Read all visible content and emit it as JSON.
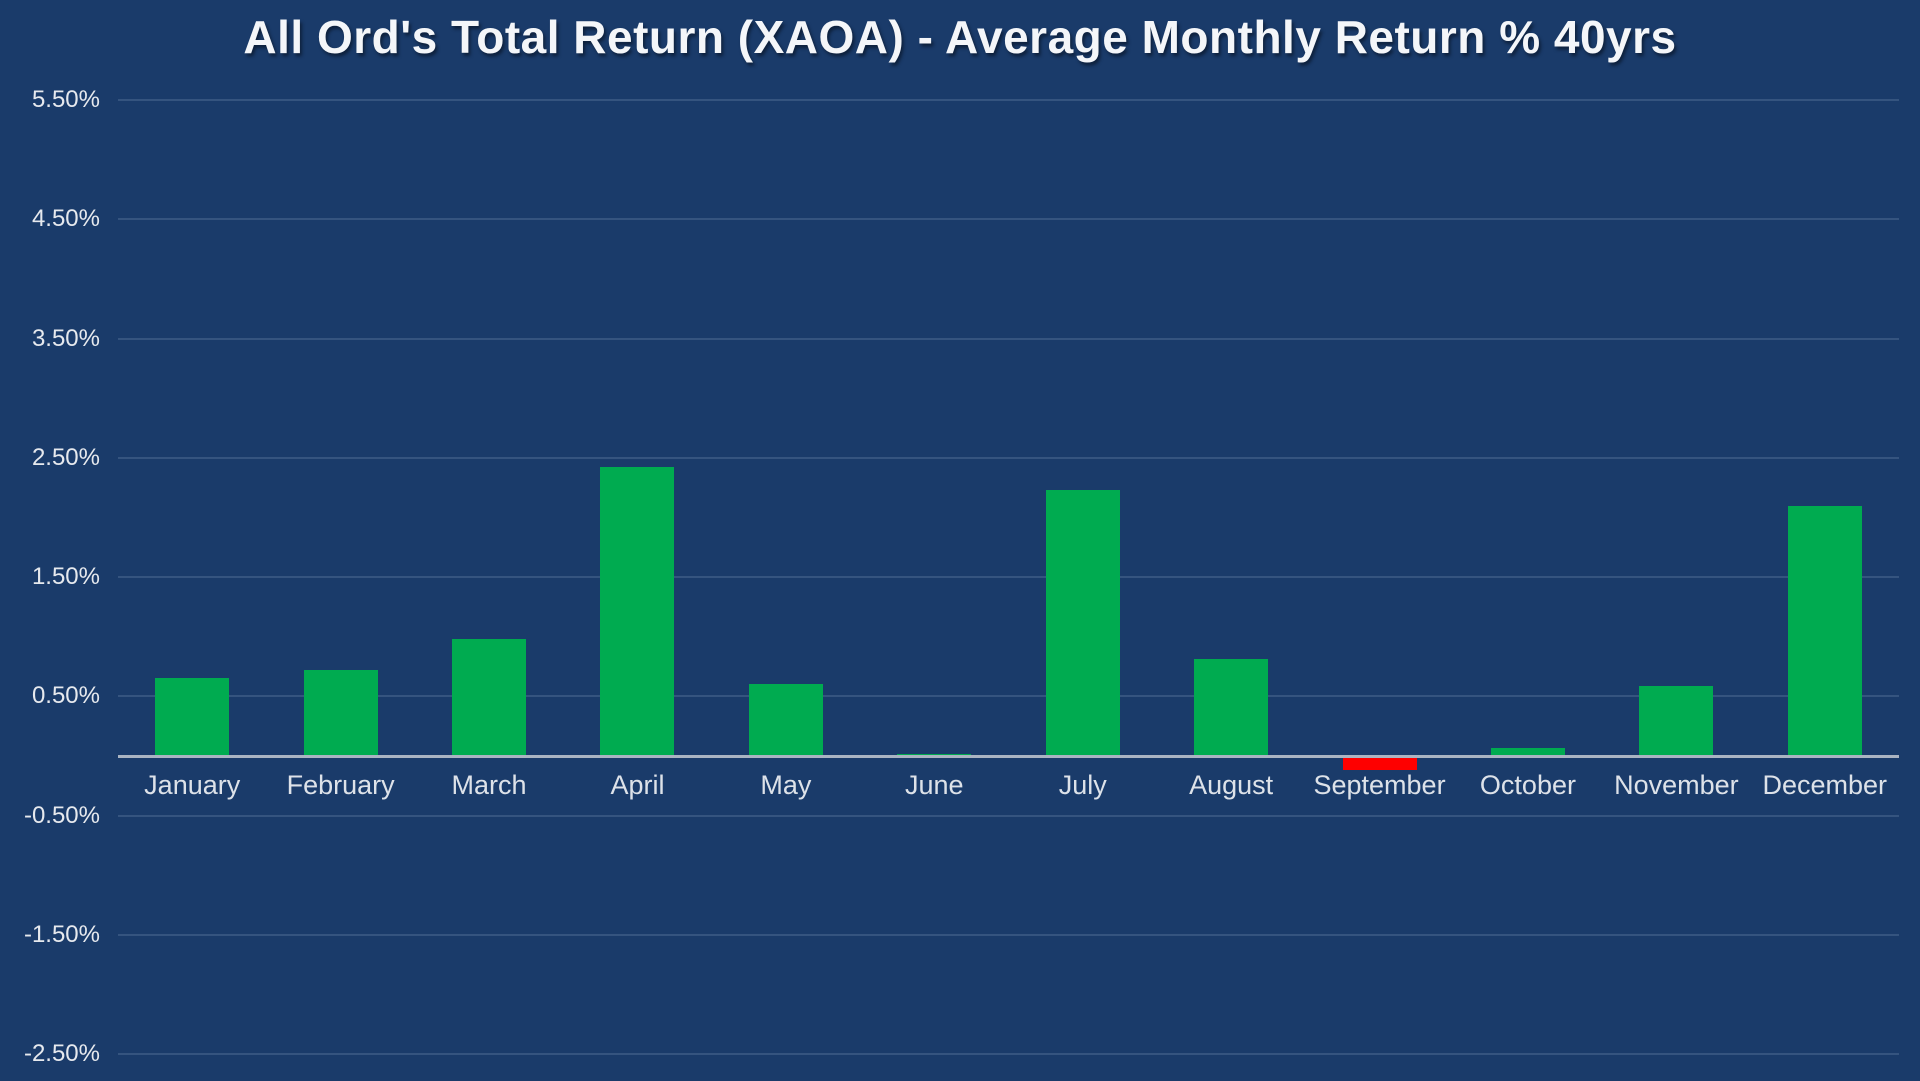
{
  "chart_data": {
    "type": "bar",
    "title": "All Ord's Total Return (XAOA) - Average Monthly Return % 40yrs",
    "categories": [
      "January",
      "February",
      "March",
      "April",
      "May",
      "June",
      "July",
      "August",
      "September",
      "October",
      "November",
      "December"
    ],
    "values": [
      0.65,
      0.72,
      0.98,
      2.42,
      0.6,
      0.02,
      2.23,
      0.81,
      -0.11,
      0.07,
      0.59,
      2.1
    ],
    "unit": "%",
    "xlabel": "",
    "ylabel": "",
    "y_ticks": [
      "5.50%",
      "4.50%",
      "3.50%",
      "2.50%",
      "1.50%",
      "0.50%",
      "-0.50%",
      "-1.50%",
      "-2.50%"
    ],
    "y_tick_values": [
      5.5,
      4.5,
      3.5,
      2.5,
      1.5,
      0.5,
      -0.5,
      -1.5,
      -2.5
    ],
    "ylim": [
      -2.5,
      5.5
    ],
    "grid": true,
    "legend": false,
    "colors": {
      "background": "#1a3b6a",
      "positive_bar": "#00ab50",
      "negative_bar": "#fe0000",
      "gridline": "#35547f",
      "baseline": "#aab4c2",
      "y_tick_label": "#e6e9ee",
      "x_tick_label": "#dde2e9",
      "title": "#f4f6f9"
    }
  }
}
